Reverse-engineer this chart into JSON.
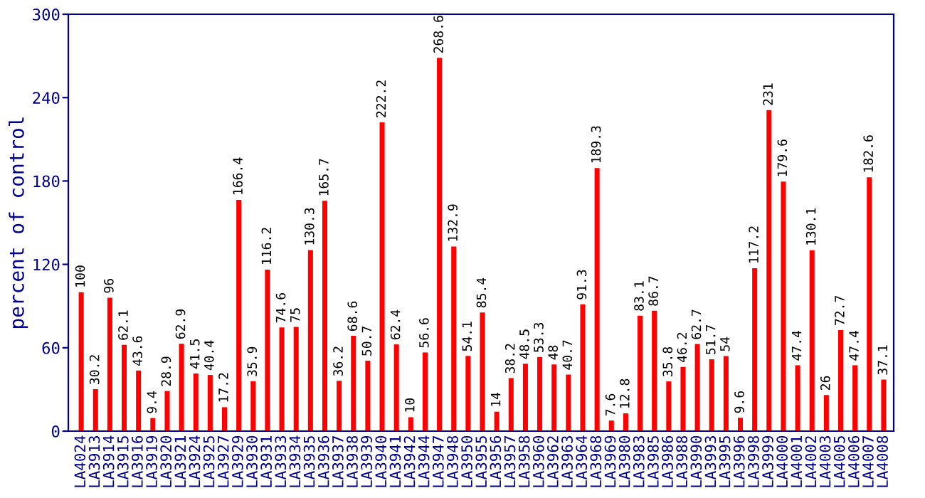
{
  "chart_data": {
    "type": "bar",
    "ylabel": "percent of control",
    "categories": [
      "LA4024",
      "LA3913",
      "LA3914",
      "LA3915",
      "LA3916",
      "LA3919",
      "LA3920",
      "LA3921",
      "LA3924",
      "LA3925",
      "LA3927",
      "LA3929",
      "LA3930",
      "LA3931",
      "LA3933",
      "LA3934",
      "LA3935",
      "LA3936",
      "LA3937",
      "LA3938",
      "LA3939",
      "LA3940",
      "LA3941",
      "LA3942",
      "LA3944",
      "LA3947",
      "LA3948",
      "LA3950",
      "LA3955",
      "LA3956",
      "LA3957",
      "LA3958",
      "LA3960",
      "LA3962",
      "LA3963",
      "LA3964",
      "LA3968",
      "LA3969",
      "LA3980",
      "LA3983",
      "LA3985",
      "LA3986",
      "LA3988",
      "LA3990",
      "LA3993",
      "LA3995",
      "LA3996",
      "LA3998",
      "LA3999",
      "LA4000",
      "LA4001",
      "LA4002",
      "LA4003",
      "LA4005",
      "LA4006",
      "LA4007",
      "LA4008"
    ],
    "values": [
      100,
      30.2,
      96,
      62.1,
      43.6,
      9.4,
      28.9,
      62.9,
      41.5,
      40.4,
      17.2,
      166.4,
      35.9,
      116.2,
      74.6,
      75,
      130.3,
      165.7,
      36.2,
      68.6,
      50.7,
      222.2,
      62.4,
      10,
      56.6,
      268.6,
      132.9,
      54.1,
      85.4,
      14,
      38.2,
      48.5,
      53.3,
      48,
      40.7,
      91.3,
      189.3,
      7.6,
      12.8,
      83.1,
      86.7,
      35.8,
      46.2,
      62.7,
      51.7,
      54,
      9.6,
      117.2,
      231,
      179.6,
      47.4,
      130.1,
      26,
      72.7,
      47.4,
      182.6,
      37.1
    ],
    "color": "#ff0000",
    "data_labels": true,
    "ylim": [
      0,
      300
    ],
    "yticks": [
      0,
      60,
      120,
      180,
      240,
      300
    ],
    "grid": false,
    "legend": false
  }
}
